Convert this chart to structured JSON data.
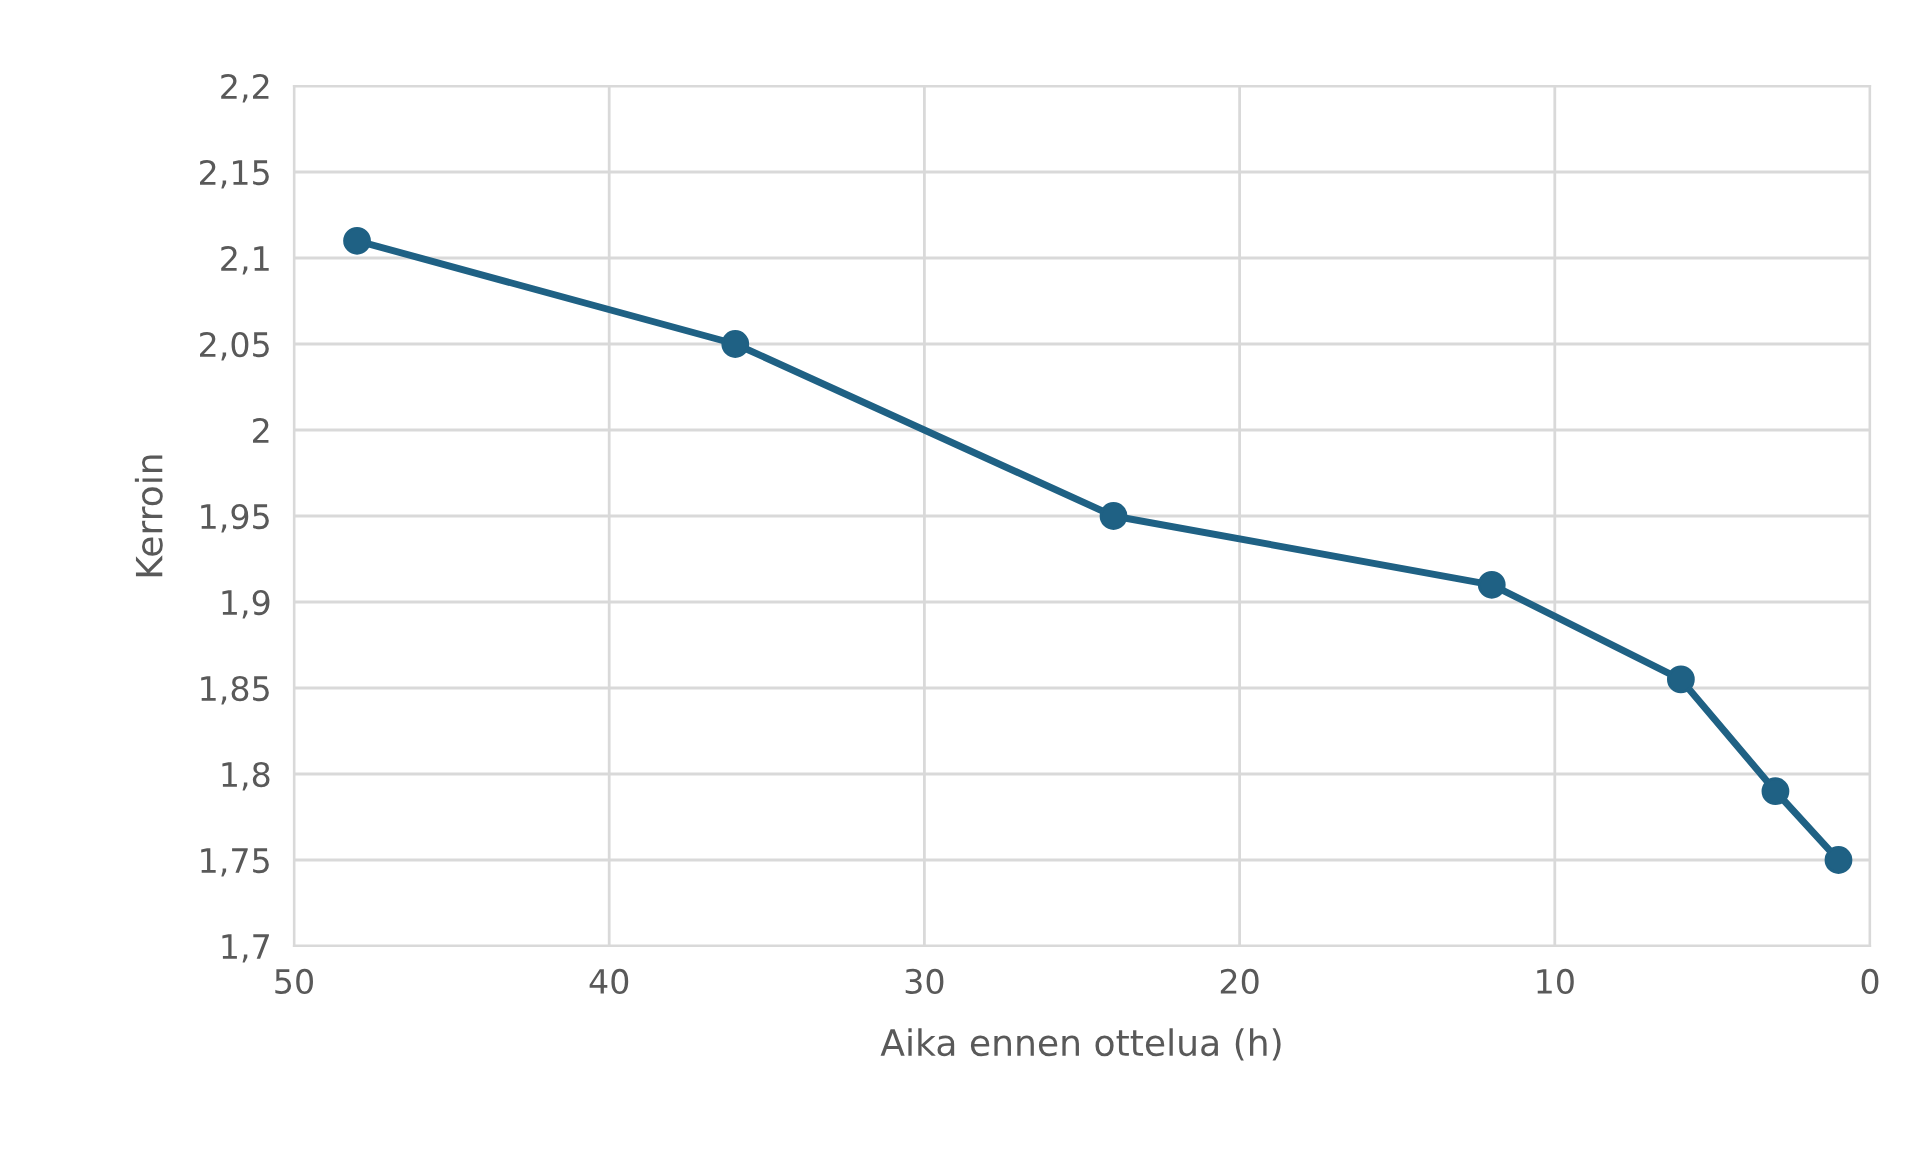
{
  "chart_data": {
    "type": "line",
    "xlabel": "Aika ennen ottelua (h)",
    "ylabel": "Kerroin",
    "x": [
      48,
      36,
      24,
      12,
      6,
      3,
      1
    ],
    "series": [
      {
        "color": "#1f6184",
        "values": [
          2.11,
          2.05,
          1.95,
          1.91,
          1.855,
          1.79,
          1.75
        ]
      }
    ],
    "xlim": [
      50,
      0
    ],
    "xticks": [
      50,
      40,
      30,
      20,
      10,
      0
    ],
    "ylim": [
      1.7,
      2.2
    ],
    "yticks": [
      {
        "value": 1.7,
        "label": "1,7"
      },
      {
        "value": 1.75,
        "label": "1,75"
      },
      {
        "value": 1.8,
        "label": "1,8"
      },
      {
        "value": 1.85,
        "label": "1,85"
      },
      {
        "value": 1.9,
        "label": "1,9"
      },
      {
        "value": 1.95,
        "label": "1,95"
      },
      2,
      {
        "value": 2.05,
        "label": "2,05"
      },
      {
        "value": 2.1,
        "label": "2,1"
      },
      {
        "value": 2.15,
        "label": "2,15"
      },
      {
        "value": 2.2,
        "label": "2,2"
      }
    ],
    "grid": true,
    "marker": "circle",
    "line_style": "solid"
  }
}
